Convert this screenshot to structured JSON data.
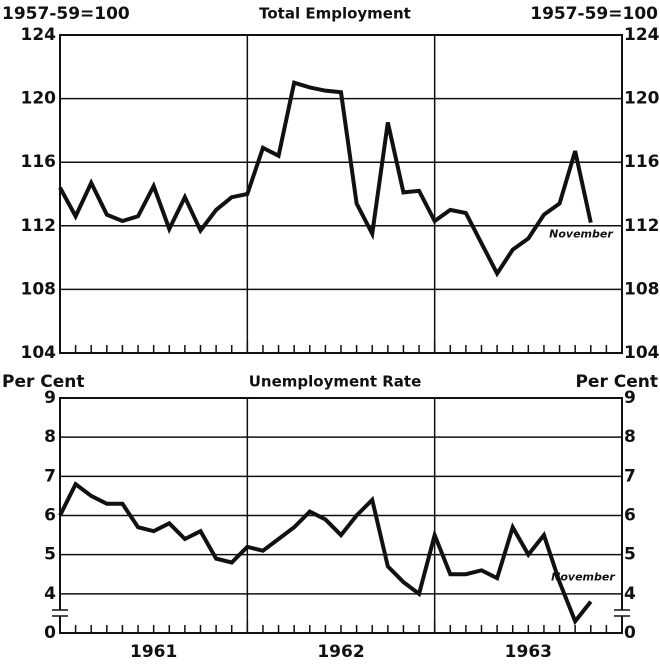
{
  "x_axis": {
    "labels": [
      "1961",
      "1962",
      "1963"
    ]
  },
  "chart_data": [
    {
      "type": "line",
      "title": "Total Employment",
      "y_label_left": "1957-59=100",
      "y_label_right": "1957-59=100",
      "annotation": "November",
      "color": "#111111",
      "grid": true,
      "ylim": [
        104,
        124
      ],
      "yticks": [
        104,
        108,
        112,
        116,
        120,
        124
      ],
      "values": [
        114.4,
        112.6,
        114.7,
        112.7,
        112.3,
        112.6,
        114.5,
        111.8,
        113.8,
        111.7,
        113.0,
        113.8,
        114.0,
        116.9,
        116.4,
        121.0,
        120.7,
        120.5,
        120.4,
        113.4,
        111.5,
        118.5,
        114.1,
        114.2,
        112.3,
        113.0,
        112.8,
        110.9,
        109.0,
        110.5,
        111.2,
        112.7,
        113.4,
        116.7,
        112.2
      ]
    },
    {
      "type": "line",
      "title": "Unemployment Rate",
      "y_label_left": "Per Cent",
      "y_label_right": "Per Cent",
      "annotation": "November",
      "color": "#111111",
      "grid": true,
      "axis_break_label": "0",
      "ylim": [
        3,
        9
      ],
      "yticks": [
        4,
        5,
        6,
        7,
        8,
        9
      ],
      "values": [
        6.0,
        6.8,
        6.5,
        6.3,
        6.3,
        5.7,
        5.6,
        5.8,
        5.4,
        5.6,
        4.9,
        4.8,
        5.2,
        5.1,
        5.4,
        5.7,
        6.1,
        5.9,
        5.5,
        6.0,
        6.4,
        4.7,
        4.3,
        4.0,
        5.5,
        4.5,
        4.5,
        4.6,
        4.4,
        5.7,
        5.0,
        5.5,
        4.3,
        3.3,
        3.8
      ]
    }
  ]
}
